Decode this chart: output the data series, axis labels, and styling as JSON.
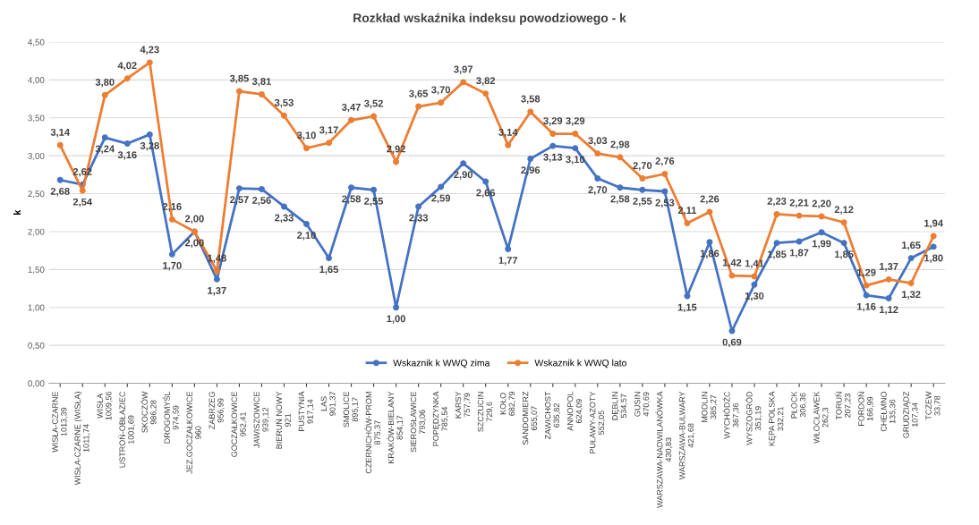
{
  "chart_data": {
    "type": "line",
    "title": "Rozkład wskaźnika indeksu powodziowego - k",
    "ylabel": "k",
    "categories": [
      "WISŁA-CZARNE\n1013,39",
      "WISŁA-CZARNE (WISŁA)\n1011,74",
      "WISŁA\n1009,56",
      "USTROŃ-OBŁAZIEC\n1001,69",
      "SKOCZÓW\n986,28",
      "DROGOMYŚL\n974,59",
      "JEZ.GOCZAŁKOWICE\n960",
      "ZABRZEG\n956,99",
      "GOCZAŁKOWICE\n952,41",
      "JAWISZOWICE\n939,12",
      "BIERUŃ NOWY\n921",
      "PUSTYNIA\n917,14",
      "LAS\n901,37",
      "SMOLICE\n895,17",
      "CZERNICHÓW-PROM\n875,37",
      "KRAKÓW-BIELANY\n854,17",
      "SIEROSŁAWICE\n793,06",
      "POPĘDZYNKA\n785,54",
      "KARSY\n757,79",
      "SZCZUCIN\n729,6",
      "KOŁO\n682,79",
      "SANDOMIERZ\n655,07",
      "ZAWICHOST\n635,82",
      "ANNOPOL\n624,09",
      "PUŁAWY-AZOTY\n552,05",
      "DĘBLIN\n534,57",
      "GUSIN\n470,69",
      "WARSZAWA-NADWILANÓWKA\n430,83",
      "WARSZAWA-BULWARY\n421,68",
      "MODLIN\n385,27",
      "WYCHÓDŹC\n367,36",
      "WYSZOGRÓD\n351,19",
      "KĘPA POLSKA\n332,21",
      "PŁOCK\n306,36",
      "WŁOCŁAWEK\n262,3",
      "TORUŃ\n207,23",
      "FORDOŃ\n166,99",
      "CHEŁMNO\n135,36",
      "GRUDZIĄDZ\n107,34",
      "TCZEW\n33,78"
    ],
    "series": [
      {
        "name": "Wskaznik k WWQ zima",
        "color": "#4472c4",
        "values": [
          2.68,
          2.62,
          3.24,
          3.16,
          3.28,
          1.7,
          2.0,
          1.37,
          2.57,
          2.56,
          2.33,
          2.1,
          1.65,
          2.58,
          2.55,
          1.0,
          2.33,
          2.59,
          2.9,
          2.66,
          1.77,
          2.96,
          3.13,
          3.1,
          2.7,
          2.58,
          2.55,
          2.53,
          1.15,
          1.86,
          0.69,
          1.3,
          1.85,
          1.87,
          1.99,
          1.85,
          1.16,
          1.12,
          1.65,
          1.8
        ],
        "value_labels": [
          "2,68",
          "2,62",
          "3,24",
          "3,16",
          "3,28",
          "1,70",
          "2,00",
          "1,37",
          "2,57",
          "2,56",
          "2,33",
          "2,10",
          "1,65",
          "2,58",
          "2,55",
          "1,00",
          "2,33",
          "2,59",
          "2,90",
          "2,66",
          "1,77",
          "2,96",
          "3,13",
          "3,10",
          "2,70",
          "2,58",
          "2,55",
          "2,53",
          "1,15",
          "1,86",
          "0,69",
          "1,30",
          "1,85",
          "1,87",
          "1,99",
          "1,85",
          "1,16",
          "1,12",
          "1,65",
          "1,80"
        ]
      },
      {
        "name": "Wskaznik k WWQ lato",
        "color": "#ed7d31",
        "values": [
          3.14,
          2.54,
          3.8,
          4.02,
          4.23,
          2.16,
          2.0,
          1.48,
          3.85,
          3.81,
          3.53,
          3.1,
          3.17,
          3.47,
          3.52,
          2.92,
          3.65,
          3.7,
          3.97,
          3.82,
          3.14,
          3.58,
          3.29,
          3.29,
          3.03,
          2.98,
          2.7,
          2.76,
          2.11,
          2.26,
          1.42,
          1.41,
          2.23,
          2.21,
          2.2,
          2.12,
          1.29,
          1.37,
          1.32,
          1.94
        ],
        "value_labels": [
          "3,14",
          "2,54",
          "3,80",
          "4,02",
          "4,23",
          "2,16",
          "2,00",
          "1,48",
          "3,85",
          "3,81",
          "3,53",
          "3,10",
          "3,17",
          "3,47",
          "3,52",
          "2,92",
          "3,65",
          "3,70",
          "3,97",
          "3,82",
          "3,14",
          "3,58",
          "3,29",
          "3,29",
          "3,03",
          "2,98",
          "2,70",
          "2,76",
          "2,11",
          "2,26",
          "1,42",
          "1,41",
          "2,23",
          "2,21",
          "2,20",
          "2,12",
          "1,29",
          "1,37",
          "1,32",
          "1,94"
        ]
      }
    ],
    "ylim": [
      0,
      4.5
    ],
    "yticks": [
      {
        "value": 0,
        "label": "0,00"
      },
      {
        "value": 0.5,
        "label": "0,50"
      },
      {
        "value": 1,
        "label": "1,00"
      },
      {
        "value": 1.5,
        "label": "1,50"
      },
      {
        "value": 2,
        "label": "2,00"
      },
      {
        "value": 2.5,
        "label": "2,50"
      },
      {
        "value": 3,
        "label": "3,00"
      },
      {
        "value": 3.5,
        "label": "3,50"
      },
      {
        "value": 4,
        "label": "4,00"
      },
      {
        "value": 4.5,
        "label": "4,50"
      }
    ],
    "grid": "y",
    "legend": "bottom",
    "marker": "circle",
    "line_style": "solid"
  }
}
